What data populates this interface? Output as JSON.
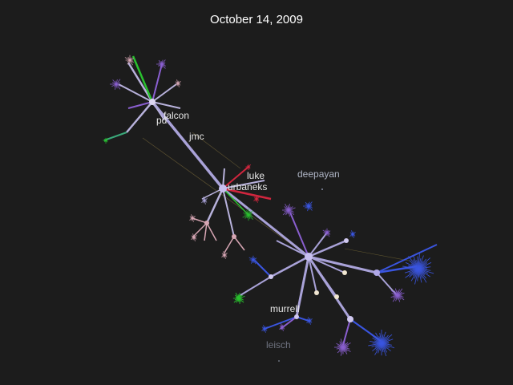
{
  "date": "October 14, 2009",
  "developers": {
    "pd": "pd",
    "falcon": "falcon",
    "jmc": "jmc",
    "luke": "luke",
    "urbaneks": "urbaneks",
    "deepayan": "deepayan",
    "murrell": "murrell",
    "leisch": "leisch"
  },
  "colors": {
    "background": "#1c1c1c",
    "branch": "#a9a2d8",
    "purple": "#8a5fd0",
    "blue": "#3a55e0",
    "red": "#d0263e",
    "green": "#29c02e",
    "pink": "#d7a6b4"
  }
}
